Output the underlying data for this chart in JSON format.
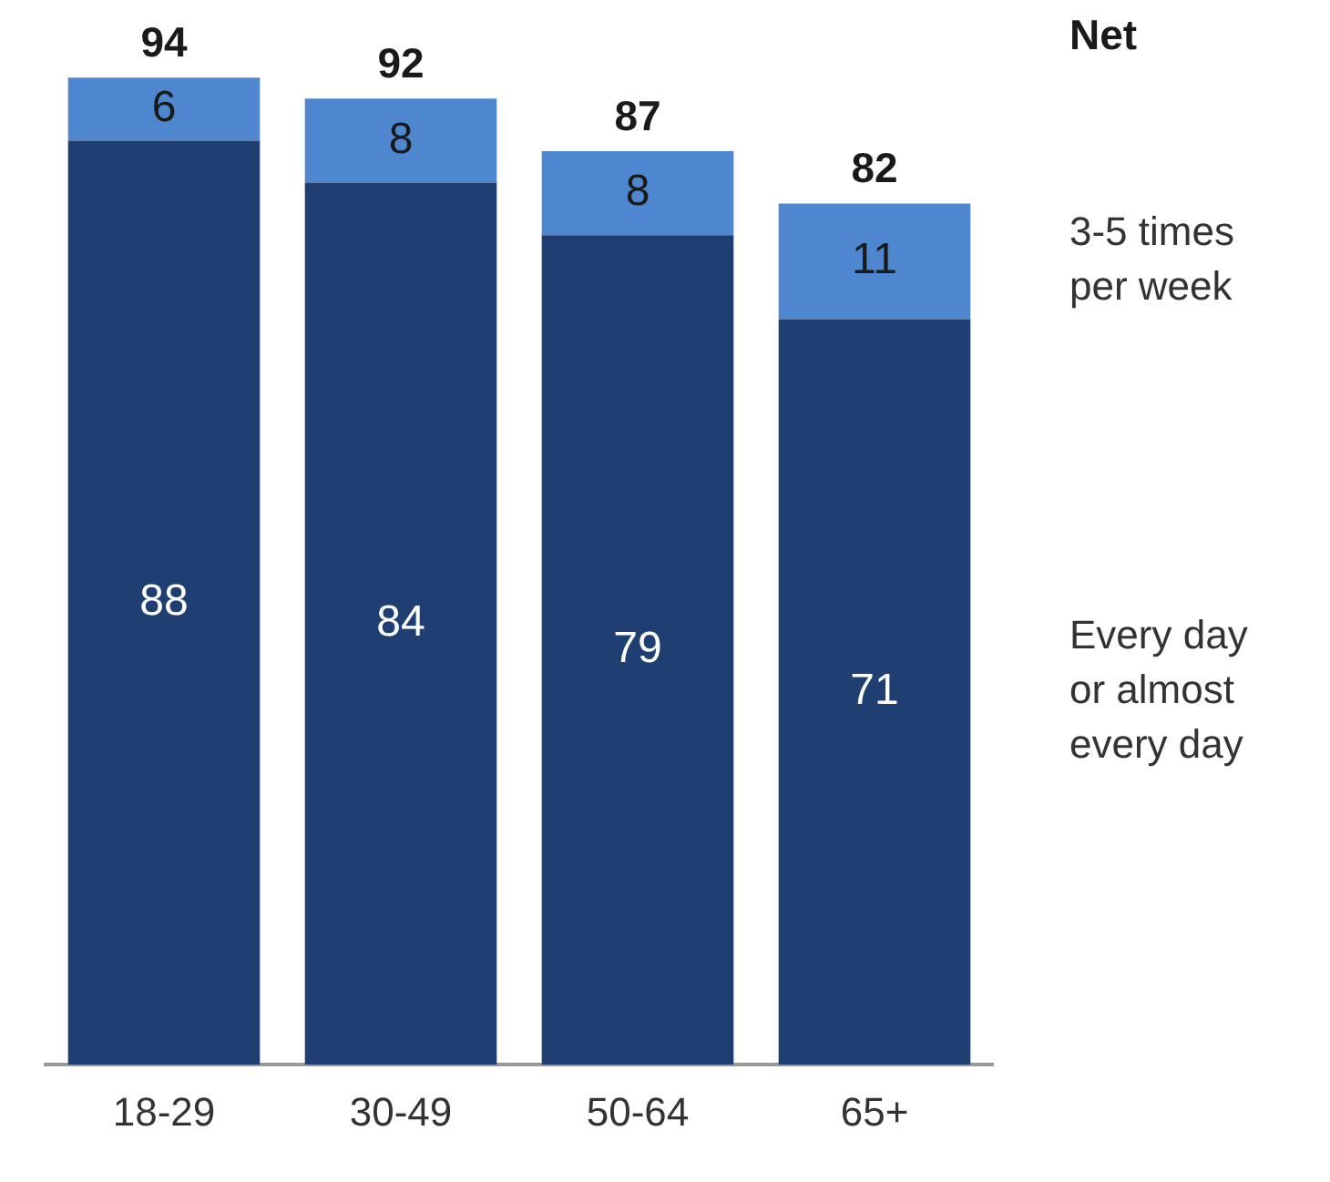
{
  "chart_data": {
    "type": "bar",
    "stacked": true,
    "categories": [
      "18-29",
      "30-49",
      "50-64",
      "65+"
    ],
    "series": [
      {
        "name": "Every day or almost every day",
        "color": "#1f3f73",
        "values": [
          88,
          84,
          79,
          71
        ]
      },
      {
        "name": "3-5 times per week",
        "color": "#4f86d0",
        "values": [
          6,
          8,
          8,
          11
        ]
      }
    ],
    "data_labels": true,
    "totals": [
      "94",
      "92",
      "87",
      "82"
    ],
    "annotations": [
      "Net"
    ],
    "grid": false,
    "legend": false
  }
}
